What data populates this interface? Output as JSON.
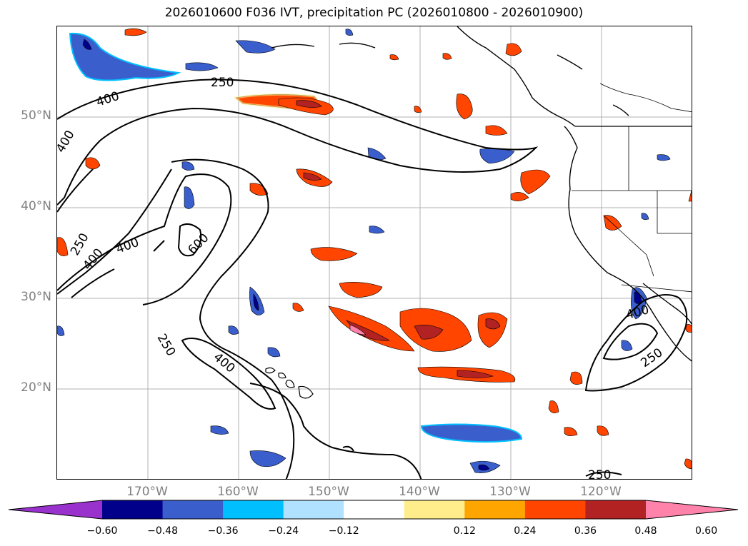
{
  "title": "2026010600 F036 IVT, precipitation PC (2026010800 - 2026010900)",
  "lat_labels": [
    "50°N",
    "40°N",
    "30°N",
    "20°N"
  ],
  "lon_labels": [
    "170°W",
    "160°W",
    "150°W",
    "140°W",
    "130°W",
    "120°W"
  ],
  "contour_labels": [
    "250",
    "400",
    "400",
    "250",
    "400",
    "400",
    "600",
    "250",
    "400",
    "400",
    "250",
    "250"
  ],
  "colorbar": {
    "ticks": [
      "−0.60",
      "−0.48",
      "−0.36",
      "−0.24",
      "−0.12",
      "0.12",
      "0.24",
      "0.36",
      "0.48",
      "0.60"
    ],
    "colors": [
      "#9932cc",
      "#00008b",
      "#3a5fcd",
      "#00bfff",
      "#b0e2ff",
      "#ffffff",
      "#ffec8b",
      "#ffa500",
      "#ff4500",
      "#b22222",
      "#ff82ab"
    ]
  }
}
